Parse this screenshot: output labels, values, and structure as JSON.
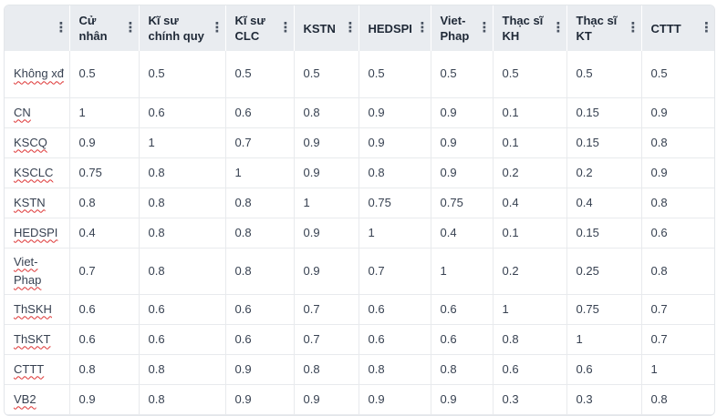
{
  "table": {
    "columns": [
      {
        "label": ""
      },
      {
        "label": "Cử nhân"
      },
      {
        "label": "Kĩ sư chính quy"
      },
      {
        "label": "Kĩ sư CLC"
      },
      {
        "label": "KSTN"
      },
      {
        "label": "HEDSPI"
      },
      {
        "label": "Viet-Phap"
      },
      {
        "label": "Thạc sĩ KH"
      },
      {
        "label": "Thạc sĩ KT"
      },
      {
        "label": "CTTT"
      }
    ],
    "menu_icon": "vertical-ellipsis-icon",
    "rows": [
      {
        "label": "Không xđ",
        "values": [
          "0.5",
          "0.5",
          "0.5",
          "0.5",
          "0.5",
          "0.5",
          "0.5",
          "0.5",
          "0.5"
        ]
      },
      {
        "label": "CN",
        "values": [
          "1",
          "0.6",
          "0.6",
          "0.8",
          "0.9",
          "0.9",
          "0.1",
          "0.15",
          "0.9"
        ]
      },
      {
        "label": "KSCQ",
        "values": [
          "0.9",
          "1",
          "0.7",
          "0.9",
          "0.9",
          "0.9",
          "0.1",
          "0.15",
          "0.8"
        ]
      },
      {
        "label": "KSCLC",
        "values": [
          "0.75",
          "0.8",
          "1",
          "0.9",
          "0.8",
          "0.9",
          "0.2",
          "0.2",
          "0.9"
        ]
      },
      {
        "label": "KSTN",
        "values": [
          "0.8",
          "0.8",
          "0.8",
          "1",
          "0.75",
          "0.75",
          "0.4",
          "0.4",
          "0.8"
        ]
      },
      {
        "label": "HEDSPI",
        "values": [
          "0.4",
          "0.8",
          "0.8",
          "0.9",
          "1",
          "0.4",
          "0.1",
          "0.15",
          "0.6"
        ]
      },
      {
        "label": "Viet-Phap",
        "values": [
          "0.7",
          "0.8",
          "0.8",
          "0.9",
          "0.7",
          "1",
          "0.2",
          "0.25",
          "0.8"
        ]
      },
      {
        "label": "ThSKH",
        "values": [
          "0.6",
          "0.6",
          "0.6",
          "0.7",
          "0.6",
          "0.6",
          "1",
          "0.75",
          "0.7"
        ]
      },
      {
        "label": "ThSKT",
        "values": [
          "0.6",
          "0.6",
          "0.6",
          "0.7",
          "0.6",
          "0.6",
          "0.8",
          "1",
          "0.7"
        ]
      },
      {
        "label": "CTTT",
        "values": [
          "0.8",
          "0.8",
          "0.9",
          "0.8",
          "0.8",
          "0.8",
          "0.6",
          "0.6",
          "1"
        ]
      },
      {
        "label": "VB2",
        "values": [
          "0.9",
          "0.8",
          "0.9",
          "0.9",
          "0.9",
          "0.9",
          "0.3",
          "0.3",
          "0.8"
        ]
      }
    ]
  },
  "colors": {
    "header_bg": "#e9ecf0",
    "border": "#e8eaed",
    "spell_underline": "#dd3333"
  }
}
